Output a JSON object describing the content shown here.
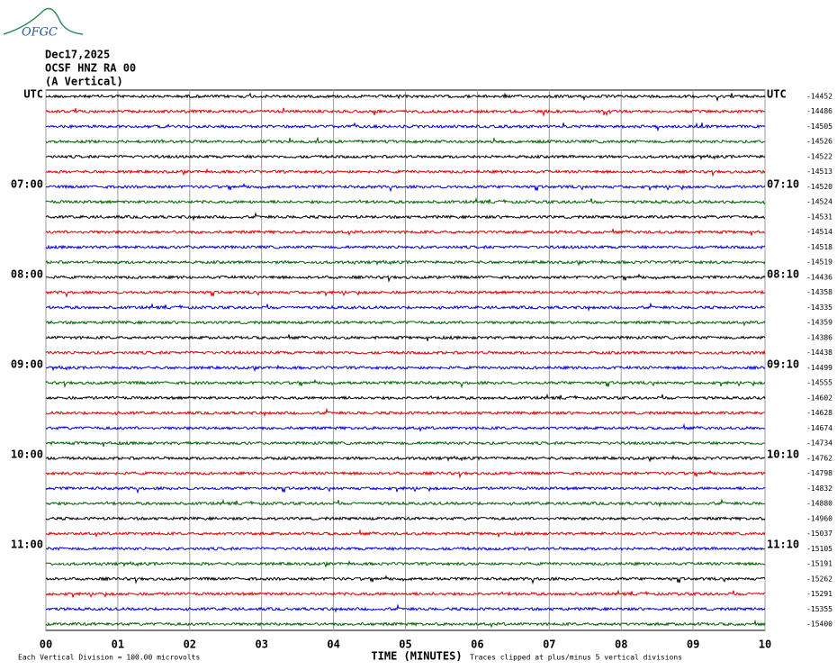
{
  "header": {
    "logo": "OFGC",
    "date": "Dec17,2025",
    "station": "OCSF HNZ RA 00",
    "component": "(A Vertical)"
  },
  "left_labels": [
    "UTC",
    "07:00",
    "08:00",
    "09:00",
    "10:00",
    "11:00"
  ],
  "right_labels": [
    "UTC",
    "07:10",
    "08:10",
    "09:10",
    "10:10",
    "11:10"
  ],
  "trace_offsets": [
    -14452,
    -14486,
    -14505,
    -14526,
    -14522,
    -14513,
    -14520,
    -14524,
    -14531,
    -14514,
    -14518,
    -14519,
    -14436,
    -14358,
    -14335,
    -14359,
    -14386,
    -14438,
    -14499,
    -14555,
    -14602,
    -14628,
    -14674,
    -14734,
    -14762,
    -14798,
    -14832,
    -14880,
    -14960,
    -15037,
    -15105,
    -15191,
    -15262,
    -15291,
    -15355,
    -15400
  ],
  "trace_colors": [
    "#000000",
    "#e00000",
    "#0000e0",
    "#006400"
  ],
  "x_axis": {
    "tick_labels": [
      "00",
      "01",
      "02",
      "03",
      "04",
      "05",
      "06",
      "07",
      "08",
      "09",
      "10"
    ],
    "title": "TIME (MINUTES)"
  },
  "footer": {
    "scale": "Each Vertical Division =  100.00 microvolts",
    "clip": "Traces clipped at plus/minus 5 vertical divisions"
  }
}
